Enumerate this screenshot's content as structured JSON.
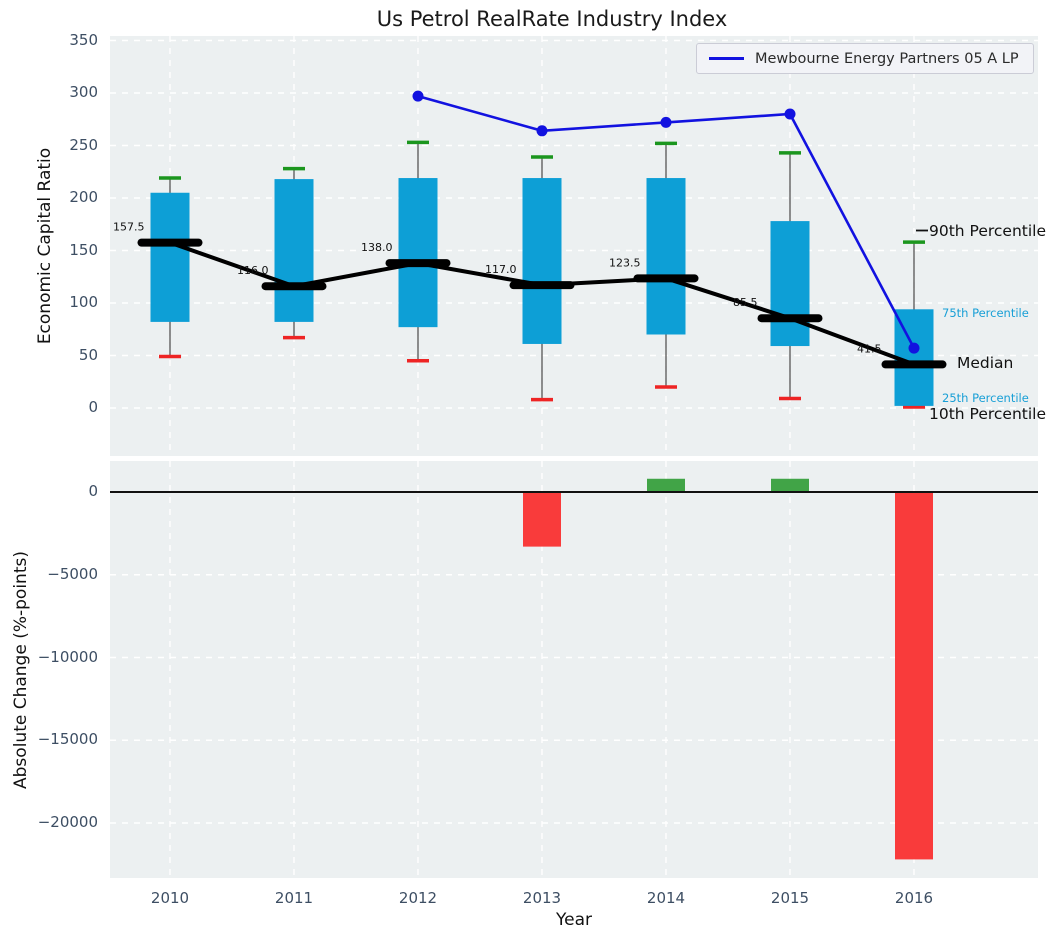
{
  "title": "Us Petrol RealRate Industry Index",
  "legend": {
    "label": "Mewbourne Energy Partners 05 A LP"
  },
  "colors": {
    "axes_bg": "#ecf0f1",
    "grid": "#ffffff",
    "box_fill": "#0d9fd6",
    "median_black": "#000000",
    "whisker_gray": "#555555",
    "cap_top_green": "#1b961e",
    "cap_bottom_red": "#ee2424",
    "series_line_blue": "#1212e0",
    "bar_positive_green": "#41a447",
    "bar_negative_red": "#f93b3b",
    "tick_label": "#3d4e63",
    "annotation_blue": "#189fd6",
    "zero_line": "#111111"
  },
  "chart_data": [
    {
      "type": "boxplot",
      "title": "Us Petrol RealRate Industry Index",
      "ylabel": "Economic Capital Ratio",
      "categories": [
        "2010",
        "2011",
        "2012",
        "2013",
        "2014",
        "2015",
        "2016"
      ],
      "yticks": [
        0,
        50,
        100,
        150,
        200,
        250,
        300,
        350
      ],
      "ytick_labels": [
        "0",
        "50",
        "100",
        "150",
        "200",
        "250",
        "300",
        "350"
      ],
      "ylim": [
        -47,
        354
      ],
      "grid": true,
      "legend_position": "upper right",
      "boxes": [
        {
          "year": "2010",
          "p10": 49,
          "p25": 82,
          "median": 157.5,
          "p75": 205,
          "p90": 219
        },
        {
          "year": "2011",
          "p10": 67,
          "p25": 82,
          "median": 116.0,
          "p75": 218,
          "p90": 228
        },
        {
          "year": "2012",
          "p10": 45,
          "p25": 77,
          "median": 138.0,
          "p75": 219,
          "p90": 253
        },
        {
          "year": "2013",
          "p10": 8,
          "p25": 61,
          "median": 117.0,
          "p75": 219,
          "p90": 239
        },
        {
          "year": "2014",
          "p10": 20,
          "p25": 70,
          "median": 123.5,
          "p75": 219,
          "p90": 252
        },
        {
          "year": "2015",
          "p10": 9,
          "p25": 59,
          "median": 85.5,
          "p75": 178,
          "p90": 243
        },
        {
          "year": "2016",
          "p10": 1,
          "p25": 2,
          "median": 41.5,
          "p75": 94,
          "p90": 158
        }
      ],
      "median_labels": [
        "157.5",
        "116.0",
        "138.0",
        "117.0",
        "123.5",
        "85.5",
        "41.5"
      ],
      "series": [
        {
          "name": "Mewbourne Energy Partners 05 A LP",
          "points": [
            {
              "year": "2012",
              "value": 297
            },
            {
              "year": "2013",
              "value": 264
            },
            {
              "year": "2014",
              "value": 272
            },
            {
              "year": "2015",
              "value": 280
            },
            {
              "year": "2016",
              "value": 57
            }
          ]
        }
      ],
      "percentile_labels": [
        {
          "text": "90th Percentile",
          "style": "lg"
        },
        {
          "text": "75th Percentile",
          "style": "sm"
        },
        {
          "text": "Median",
          "style": "lg"
        },
        {
          "text": "25th Percentile",
          "style": "sm"
        },
        {
          "text": "10th Percentile",
          "style": "lg"
        }
      ]
    },
    {
      "type": "bar",
      "ylabel": "Absolute Change (%-points)",
      "xlabel": "Year",
      "categories": [
        "2010",
        "2011",
        "2012",
        "2013",
        "2014",
        "2015",
        "2016"
      ],
      "values": [
        null,
        null,
        null,
        -3300,
        800,
        800,
        -22200
      ],
      "yticks": [
        0,
        -5000,
        -10000,
        -15000,
        -20000
      ],
      "ytick_labels": [
        "0",
        "−5000",
        "−10000",
        "−15000",
        "−20000"
      ],
      "ylim": [
        -23400,
        1900
      ],
      "grid": true
    }
  ]
}
